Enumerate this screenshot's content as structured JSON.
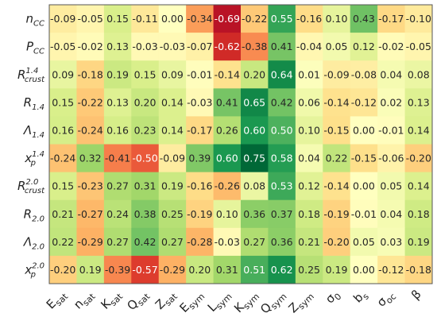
{
  "chart_data": {
    "type": "heatmap",
    "title": "",
    "color_scale": {
      "min": -0.75,
      "max": 0.75,
      "colormap": "RdYlGn"
    },
    "x_labels": [
      {
        "base": "E",
        "sub": "sat"
      },
      {
        "base": "n",
        "sub": "sat"
      },
      {
        "base": "K",
        "sub": "sat"
      },
      {
        "base": "Q",
        "sub": "sat"
      },
      {
        "base": "Z",
        "sub": "sat"
      },
      {
        "base": "E",
        "sub": "sym"
      },
      {
        "base": "L",
        "sub": "sym"
      },
      {
        "base": "K",
        "sub": "sym"
      },
      {
        "base": "Q",
        "sub": "sym"
      },
      {
        "base": "Z",
        "sub": "sym"
      },
      {
        "base": "σ",
        "sub": "0"
      },
      {
        "base": "b",
        "sub": "s"
      },
      {
        "base": "σ",
        "sub": "oc"
      },
      {
        "base": "β",
        "sub": ""
      }
    ],
    "y_labels": [
      {
        "base": "n",
        "sub": "CC",
        "sup": ""
      },
      {
        "base": "P",
        "sub": "CC",
        "sup": ""
      },
      {
        "base": "R",
        "sub": "crust",
        "sup": "1.4"
      },
      {
        "base": "R",
        "sub": "1.4",
        "sup": ""
      },
      {
        "base": "Λ",
        "sub": "1.4",
        "sup": ""
      },
      {
        "base": "x",
        "sub": "p",
        "sup": "1.4"
      },
      {
        "base": "R",
        "sub": "crust",
        "sup": "2.0"
      },
      {
        "base": "R",
        "sub": "2.0",
        "sup": ""
      },
      {
        "base": "Λ",
        "sub": "2.0",
        "sup": ""
      },
      {
        "base": "x",
        "sub": "p",
        "sup": "2.0"
      }
    ],
    "values": [
      [
        -0.09,
        -0.05,
        0.15,
        -0.11,
        0.0,
        -0.34,
        -0.69,
        -0.22,
        0.55,
        -0.16,
        0.1,
        0.43,
        -0.17,
        -0.1
      ],
      [
        -0.05,
        -0.02,
        0.13,
        -0.03,
        -0.03,
        -0.07,
        -0.62,
        -0.38,
        0.41,
        -0.04,
        0.05,
        0.12,
        -0.02,
        -0.05
      ],
      [
        0.09,
        -0.18,
        0.19,
        0.15,
        0.09,
        -0.01,
        -0.14,
        0.2,
        0.64,
        0.01,
        -0.09,
        -0.08,
        0.04,
        0.08
      ],
      [
        0.15,
        -0.22,
        0.13,
        0.2,
        0.14,
        -0.03,
        0.41,
        0.65,
        0.42,
        0.06,
        -0.14,
        -0.12,
        0.02,
        0.13
      ],
      [
        0.16,
        -0.24,
        0.16,
        0.23,
        0.14,
        -0.17,
        0.26,
        0.6,
        0.5,
        0.1,
        -0.15,
        0.0,
        -0.01,
        0.14
      ],
      [
        -0.24,
        0.32,
        -0.41,
        -0.5,
        -0.09,
        0.39,
        0.6,
        0.75,
        0.58,
        0.04,
        0.22,
        -0.15,
        -0.06,
        -0.2
      ],
      [
        0.15,
        -0.23,
        0.27,
        0.31,
        0.19,
        -0.16,
        -0.26,
        0.08,
        0.53,
        0.12,
        -0.14,
        0.0,
        0.05,
        0.14
      ],
      [
        0.21,
        -0.27,
        0.24,
        0.38,
        0.25,
        -0.19,
        0.1,
        0.36,
        0.37,
        0.18,
        -0.19,
        -0.01,
        0.04,
        0.18
      ],
      [
        0.22,
        -0.29,
        0.27,
        0.42,
        0.27,
        -0.28,
        -0.03,
        0.27,
        0.36,
        0.21,
        -0.2,
        0.05,
        0.03,
        0.19
      ],
      [
        -0.2,
        0.19,
        -0.39,
        -0.57,
        -0.29,
        0.2,
        0.31,
        0.51,
        0.62,
        0.25,
        0.19,
        -0.0,
        -0.12,
        -0.18
      ]
    ]
  }
}
